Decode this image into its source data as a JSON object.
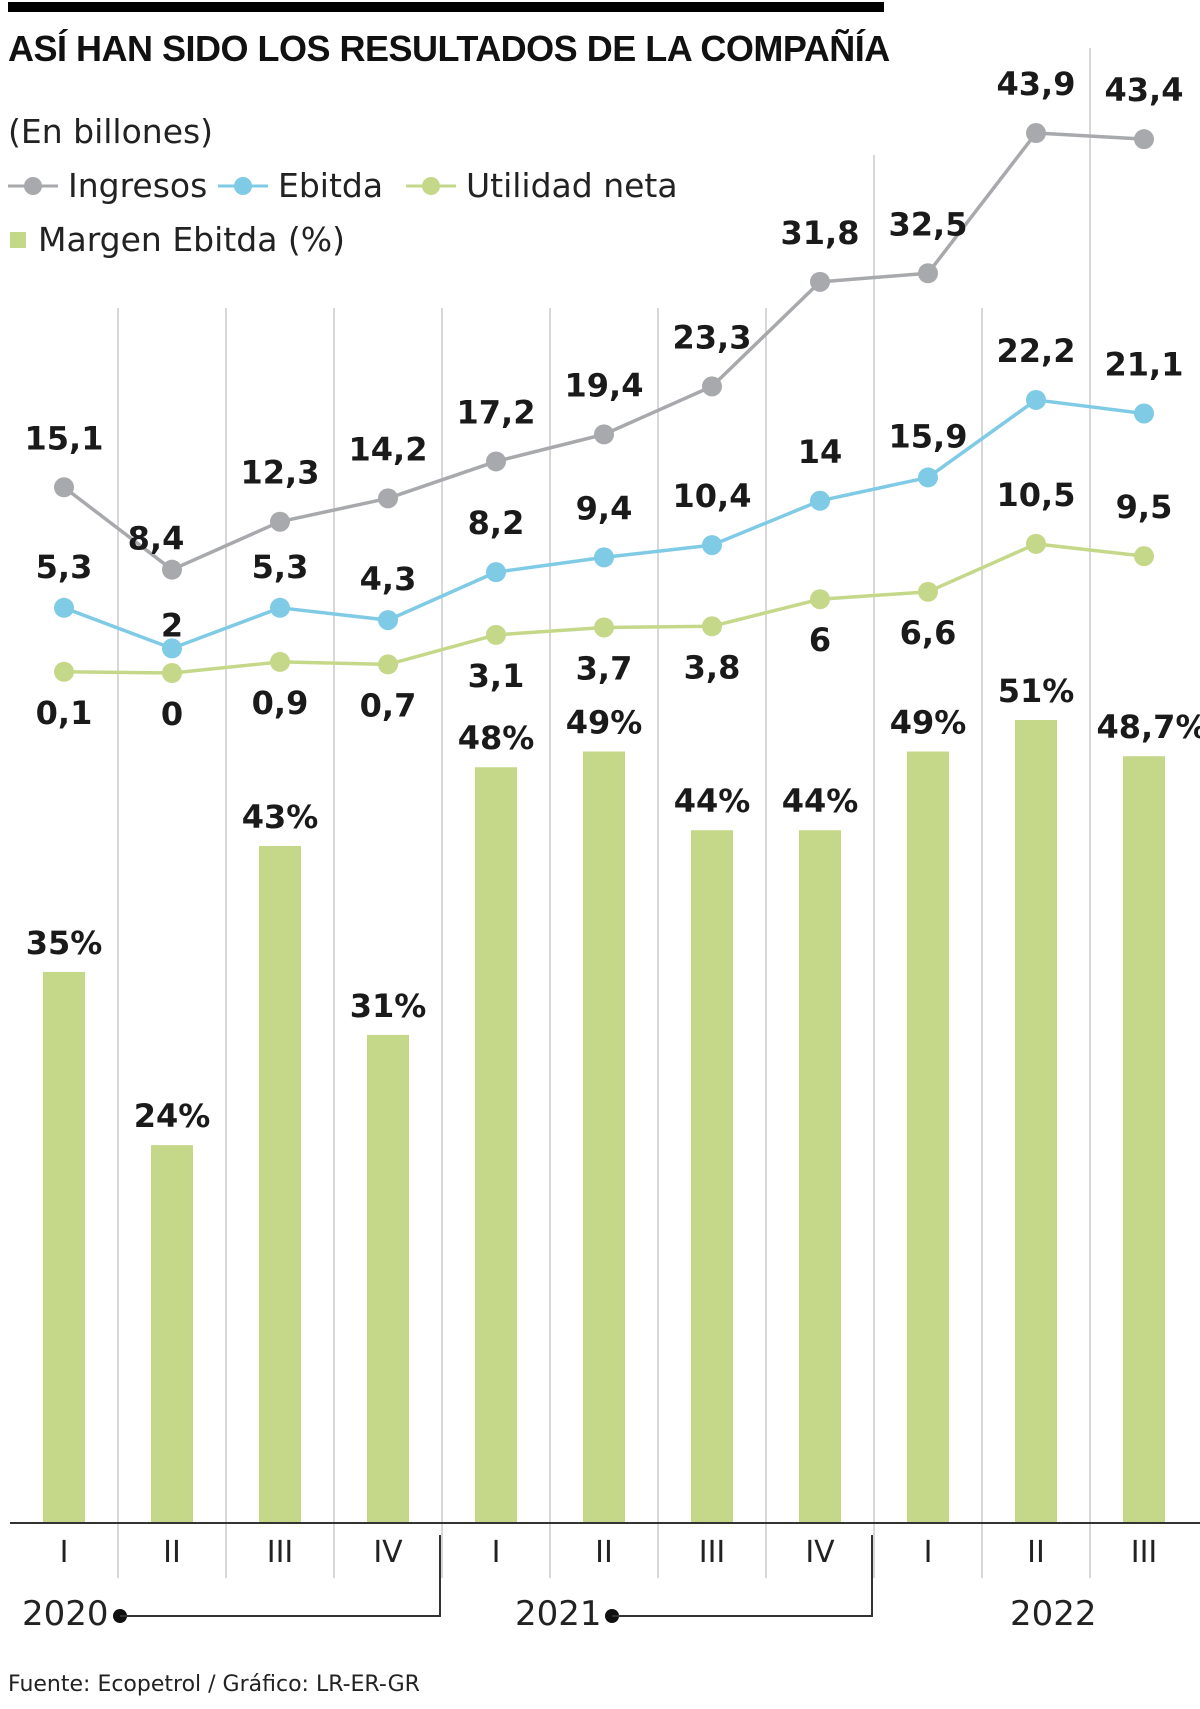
{
  "title": "ASÍ HAN SIDO LOS RESULTADOS DE LA COMPAÑÍA",
  "subtitle": "(En billones)",
  "legend": {
    "ingresos": "Ingresos",
    "ebitda": "Ebitda",
    "utilidad": "Utilidad neta",
    "margen": "Margen Ebitda (%)"
  },
  "source": "Fuente: Ecopetrol / Gráfico: LR-ER-GR",
  "colors": {
    "ingresos": "#a7a9ac",
    "ebitda": "#7fcae5",
    "utilidad": "#c5d88a",
    "bars": "#c5d88a",
    "grid": "#cccccc"
  },
  "chart_data": {
    "type": "bar+line",
    "categories": [
      "I",
      "II",
      "III",
      "IV",
      "I",
      "II",
      "III",
      "IV",
      "I",
      "II",
      "III"
    ],
    "years": [
      "2020",
      "2021",
      "2022"
    ],
    "series": [
      {
        "name": "Ingresos",
        "type": "line",
        "values": [
          15.1,
          8.4,
          12.3,
          14.2,
          17.2,
          19.4,
          23.3,
          31.8,
          32.5,
          43.9,
          43.4
        ],
        "labels": [
          "15,1",
          "8,4",
          "12,3",
          "14,2",
          "17,2",
          "19,4",
          "23,3",
          "31,8",
          "32,5",
          "43,9",
          "43,4"
        ]
      },
      {
        "name": "Ebitda",
        "type": "line",
        "values": [
          5.3,
          2,
          5.3,
          4.3,
          8.2,
          9.4,
          10.4,
          14,
          15.9,
          22.2,
          21.1
        ],
        "labels": [
          "5,3",
          "2",
          "5,3",
          "4,3",
          "8,2",
          "9,4",
          "10,4",
          "14",
          "15,9",
          "22,2",
          "21,1"
        ]
      },
      {
        "name": "Utilidad neta",
        "type": "line",
        "values": [
          0.1,
          0,
          0.9,
          0.7,
          3.1,
          3.7,
          3.8,
          6,
          6.6,
          10.5,
          9.5
        ],
        "labels": [
          "0,1",
          "0",
          "0,9",
          "0,7",
          "3,1",
          "3,7",
          "3,8",
          "6",
          "6,6",
          "10,5",
          "9,5"
        ]
      },
      {
        "name": "Margen Ebitda (%)",
        "type": "bar",
        "values": [
          35,
          24,
          43,
          31,
          48,
          49,
          44,
          44,
          49,
          51,
          48.7
        ],
        "labels": [
          "35%",
          "24%",
          "43%",
          "31%",
          "48%",
          "49%",
          "44%",
          "44%",
          "49%",
          "51%",
          "48,7%"
        ]
      }
    ],
    "grid": true
  }
}
